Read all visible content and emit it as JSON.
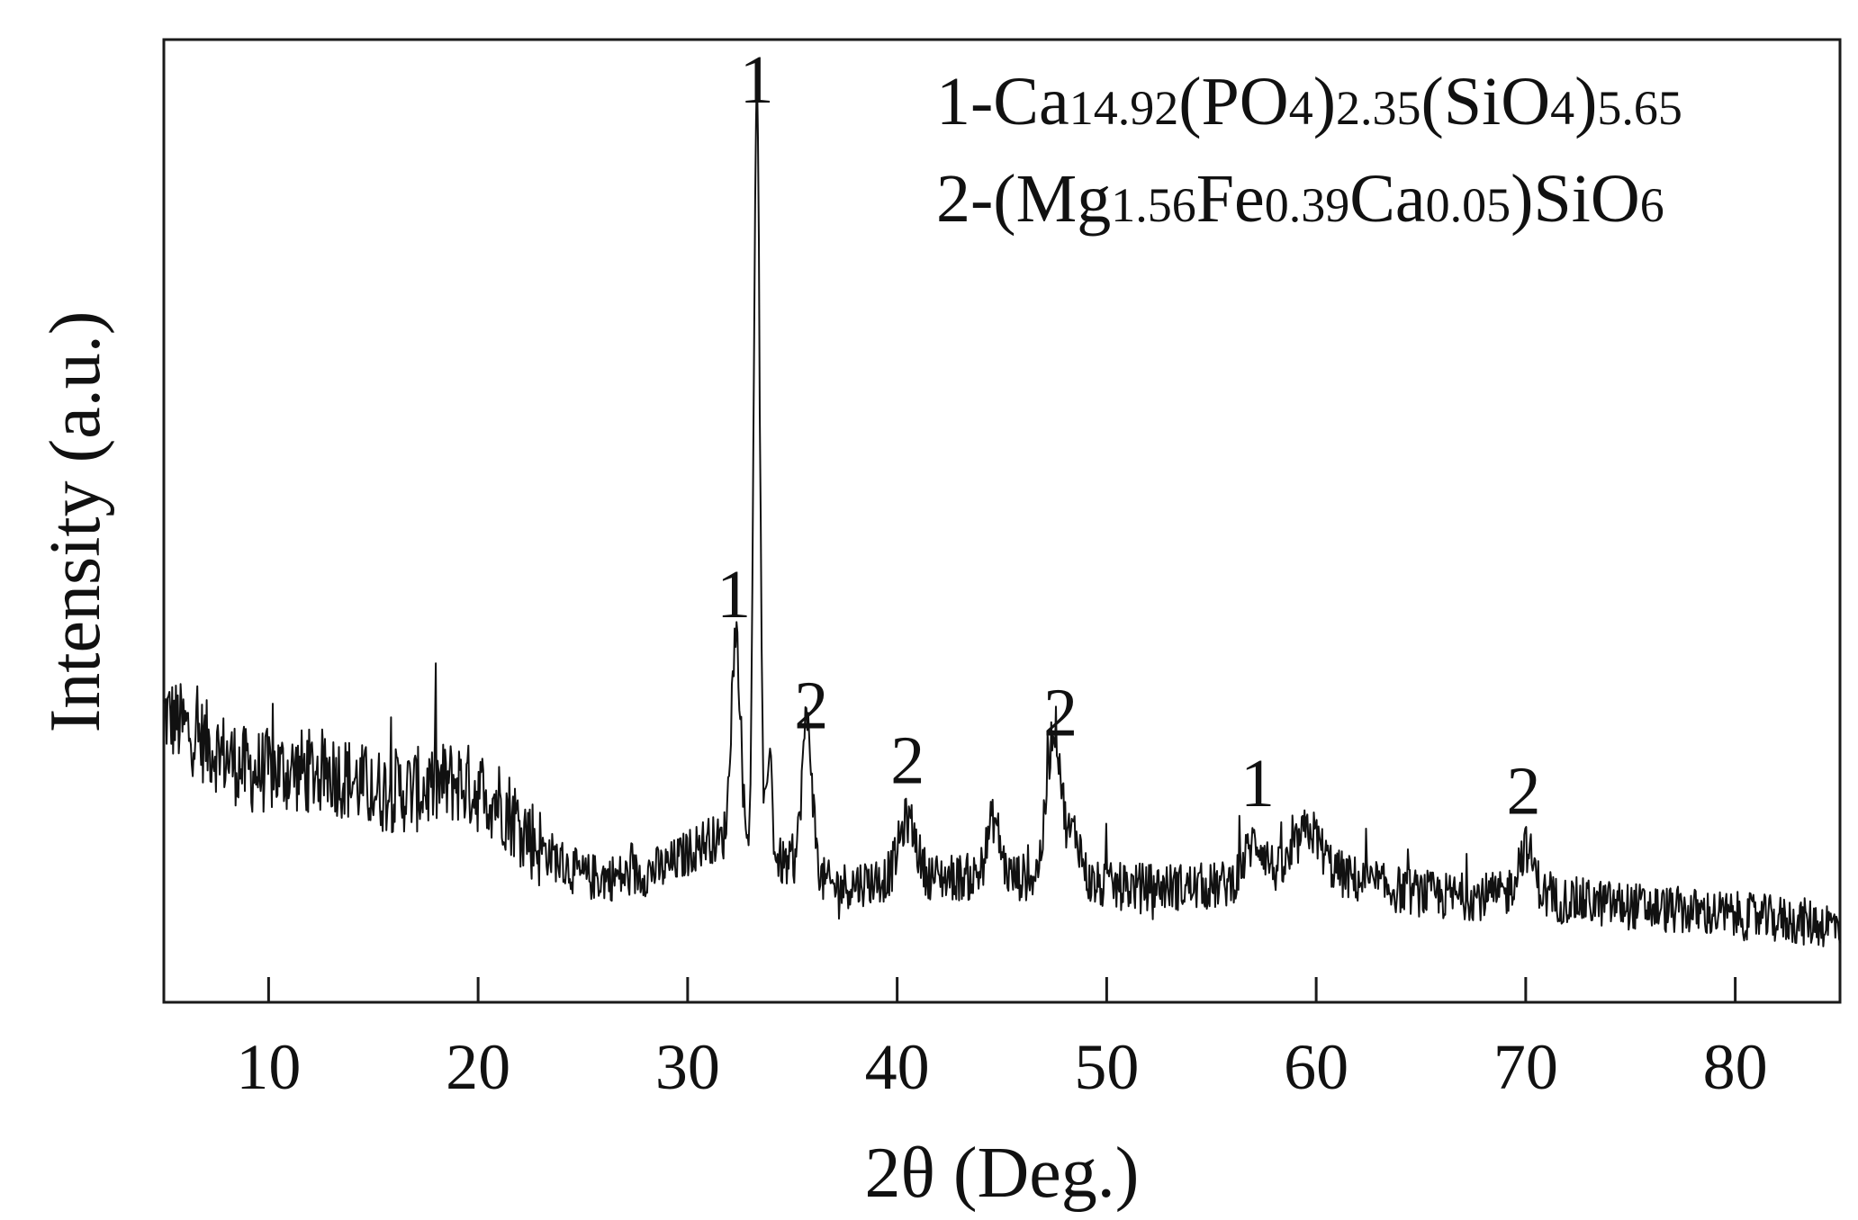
{
  "chart_data": {
    "type": "line",
    "xlabel": "2θ (Deg.)",
    "ylabel": "Intensity (a.u.)",
    "xlim": [
      5,
      85
    ],
    "x_ticks": [
      10,
      20,
      30,
      40,
      50,
      60,
      70,
      80
    ],
    "y_ticks": [],
    "grid": false,
    "legend": {
      "placement": "top-right",
      "entries": [
        {
          "id": "1",
          "parts": [
            {
              "t": "1-Ca"
            },
            {
              "t": "14.92",
              "sub": true
            },
            {
              "t": "(PO"
            },
            {
              "t": "4",
              "sub": true
            },
            {
              "t": ")"
            },
            {
              "t": "2.35",
              "sub": true
            },
            {
              "t": "(SiO"
            },
            {
              "t": "4",
              "sub": true
            },
            {
              "t": ")"
            },
            {
              "t": "5.65",
              "sub": true
            }
          ]
        },
        {
          "id": "2",
          "parts": [
            {
              "t": "2-(Mg"
            },
            {
              "t": "1.56",
              "sub": true
            },
            {
              "t": "Fe"
            },
            {
              "t": "0.39",
              "sub": true
            },
            {
              "t": "Ca"
            },
            {
              "t": "0.05",
              "sub": true
            },
            {
              "t": ")SiO"
            },
            {
              "t": "6",
              "sub": true
            }
          ]
        }
      ]
    },
    "series": [
      {
        "baseline": [
          [
            5,
            0.3
          ],
          [
            7,
            0.27
          ],
          [
            9,
            0.24
          ],
          [
            11,
            0.24
          ],
          [
            13,
            0.24
          ],
          [
            15,
            0.22
          ],
          [
            17,
            0.22
          ],
          [
            19,
            0.23
          ],
          [
            21,
            0.21
          ],
          [
            23,
            0.16
          ],
          [
            25,
            0.13
          ],
          [
            27,
            0.13
          ],
          [
            29,
            0.14
          ],
          [
            31,
            0.17
          ],
          [
            33,
            0.16
          ],
          [
            35,
            0.14
          ],
          [
            37,
            0.12
          ],
          [
            40,
            0.13
          ],
          [
            43,
            0.13
          ],
          [
            46,
            0.13
          ],
          [
            50,
            0.12
          ],
          [
            55,
            0.12
          ],
          [
            58,
            0.13
          ],
          [
            60,
            0.14
          ],
          [
            63,
            0.12
          ],
          [
            66,
            0.11
          ],
          [
            70,
            0.11
          ],
          [
            75,
            0.1
          ],
          [
            80,
            0.09
          ],
          [
            85,
            0.08
          ]
        ],
        "peaks": [
          {
            "x": 32.3,
            "height": 0.22,
            "width": 0.22
          },
          {
            "x": 33.3,
            "height": 0.8,
            "width": 0.14
          },
          {
            "x": 33.9,
            "height": 0.12,
            "width": 0.12
          },
          {
            "x": 35.7,
            "height": 0.16,
            "width": 0.25
          },
          {
            "x": 40.5,
            "height": 0.06,
            "width": 0.4
          },
          {
            "x": 44.6,
            "height": 0.06,
            "width": 0.3
          },
          {
            "x": 47.5,
            "height": 0.16,
            "width": 0.35
          },
          {
            "x": 48.5,
            "height": 0.05,
            "width": 0.3
          },
          {
            "x": 57.1,
            "height": 0.04,
            "width": 0.5
          },
          {
            "x": 59.6,
            "height": 0.04,
            "width": 0.6
          },
          {
            "x": 70.0,
            "height": 0.05,
            "width": 0.4
          }
        ],
        "noise": 0.025
      }
    ],
    "annotations": [
      {
        "text": "1",
        "x": 33.3
      },
      {
        "text": "1",
        "x": 32.2
      },
      {
        "text": "2",
        "x": 35.9
      },
      {
        "text": "2",
        "x": 40.5
      },
      {
        "text": "2",
        "x": 47.8
      },
      {
        "text": "1",
        "x": 57.2
      },
      {
        "text": "2",
        "x": 69.9
      }
    ]
  }
}
